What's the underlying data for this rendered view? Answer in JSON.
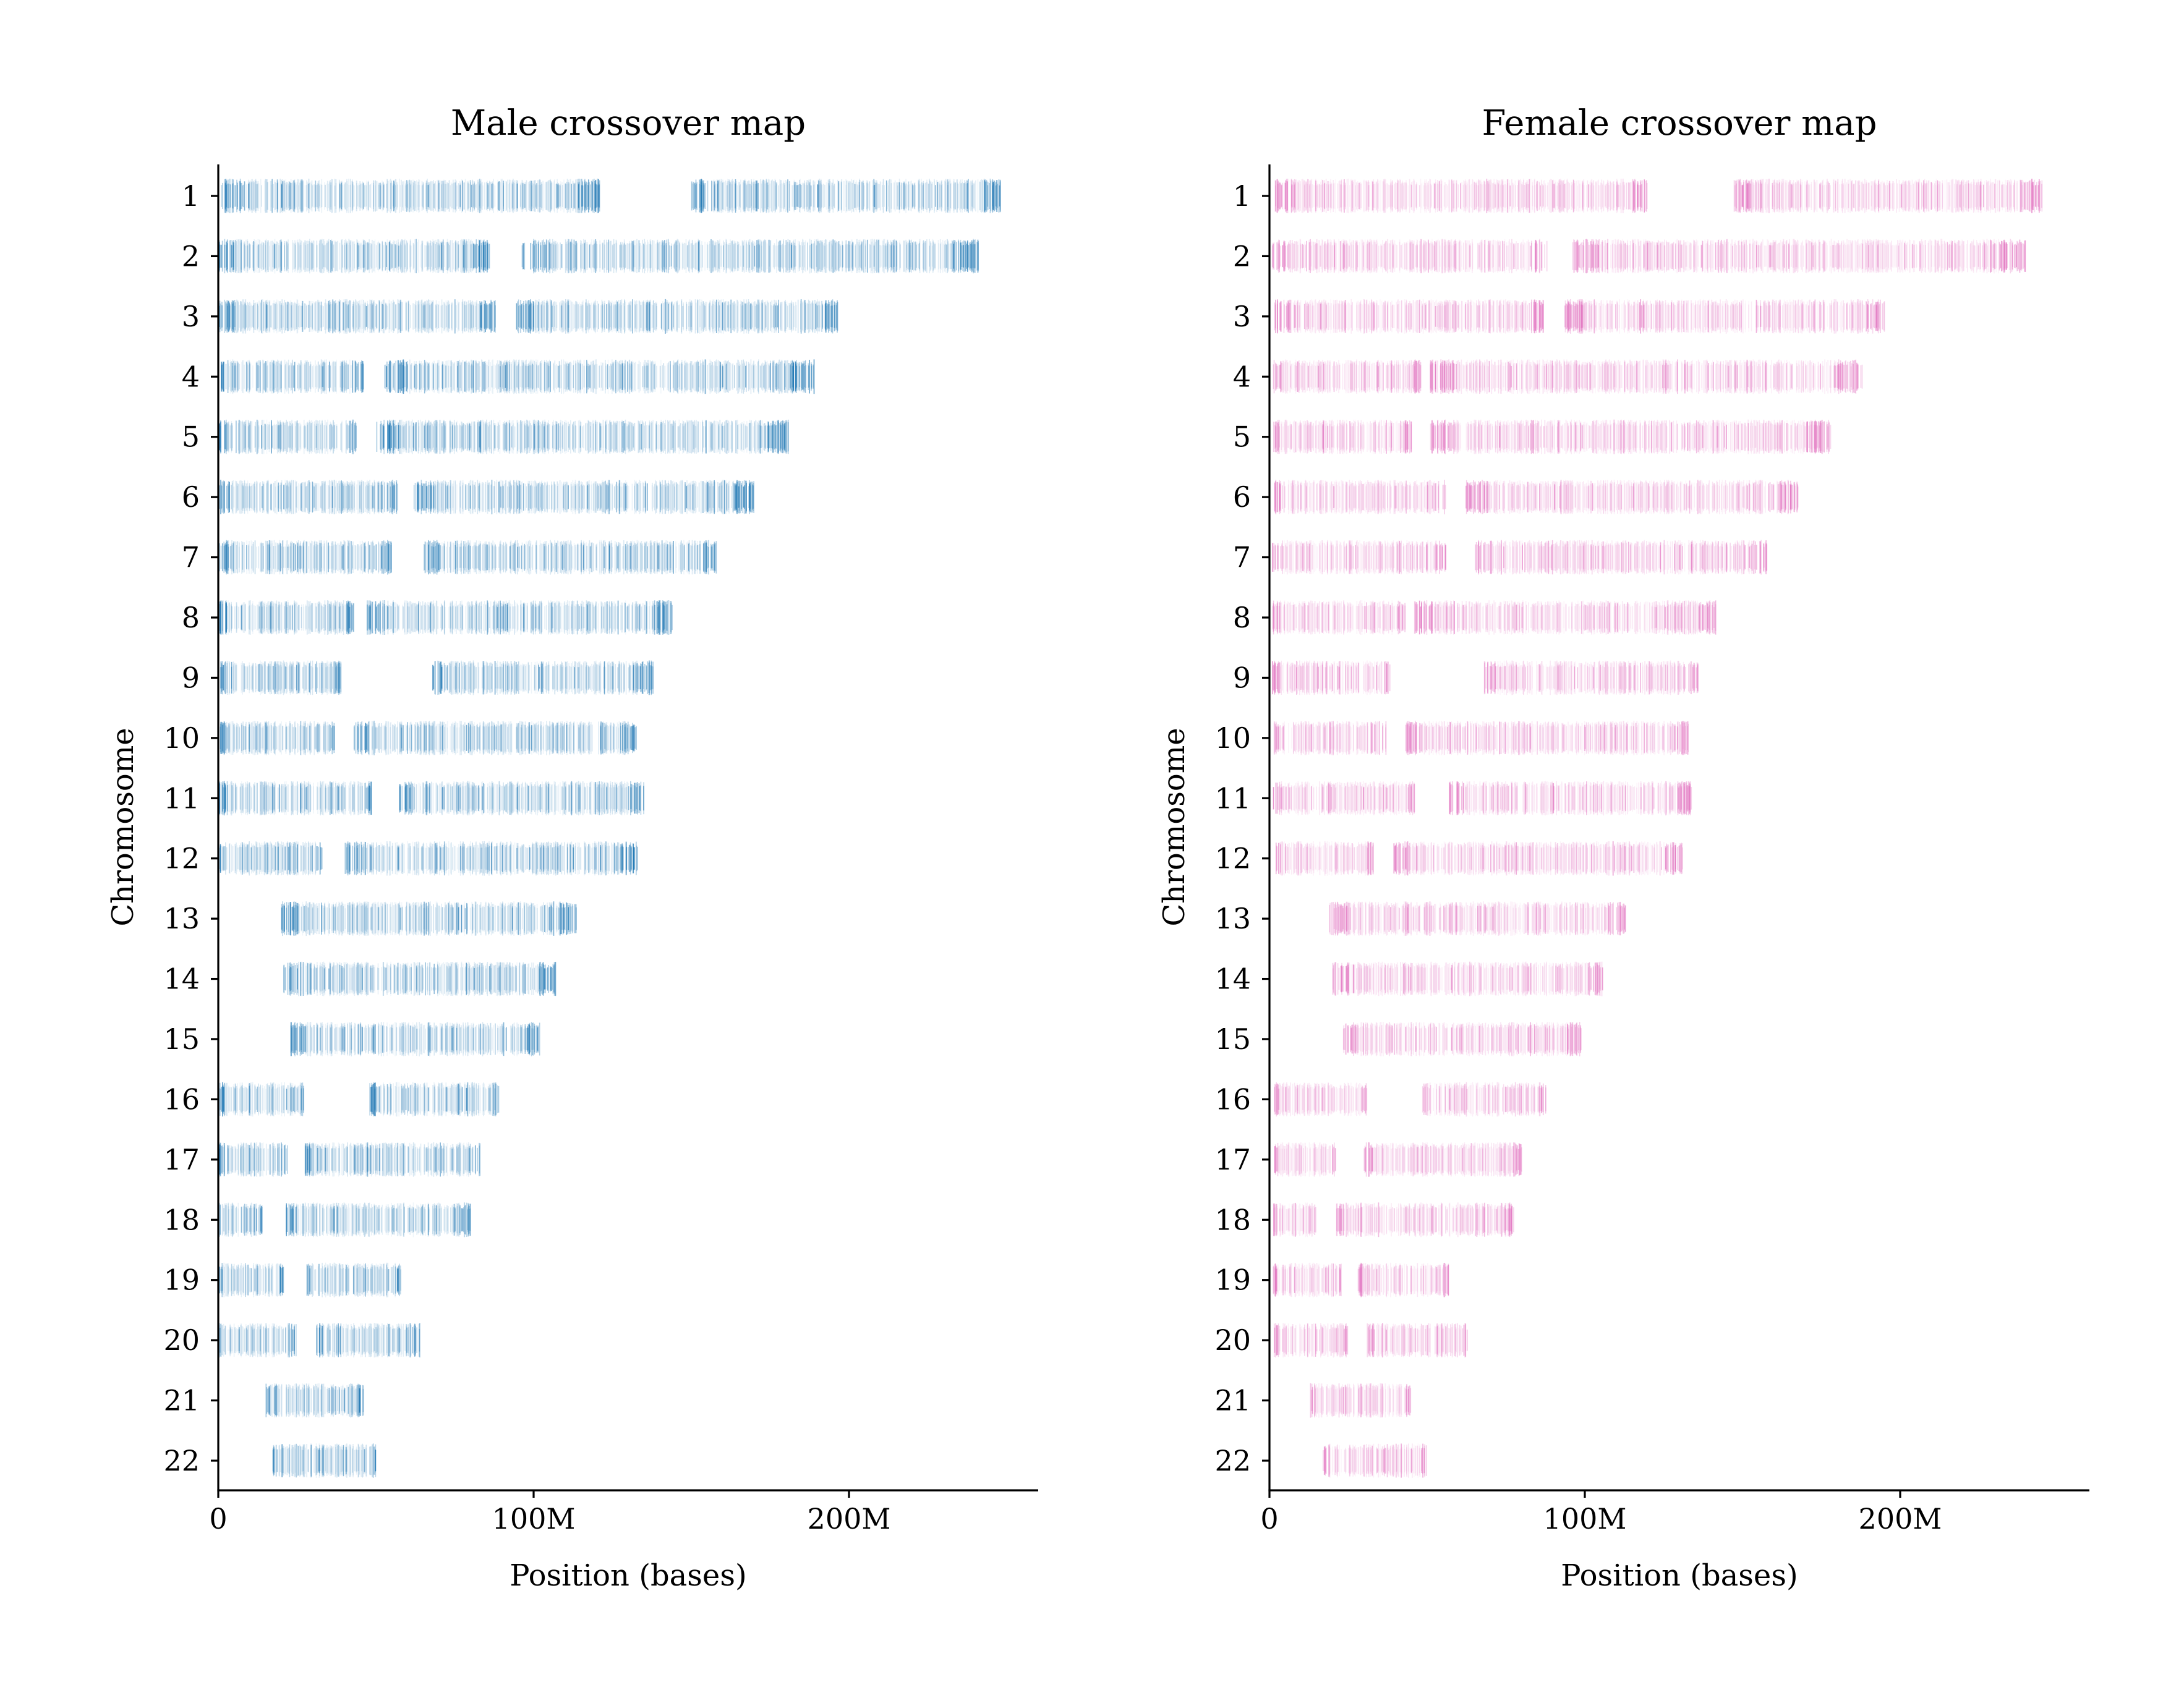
{
  "colors": {
    "male": "#1f77b4",
    "female": "#e377c2",
    "axis": "#000000",
    "background": "#ffffff"
  },
  "chart_data": [
    {
      "type": "scatter",
      "title": "Male crossover map",
      "xlabel": "Position (bases)",
      "ylabel": "Chromosome",
      "xlim": [
        0,
        260000000
      ],
      "xticks": [
        0,
        100000000,
        200000000
      ],
      "xtick_labels": [
        "0",
        "100M",
        "200M"
      ],
      "ytick_labels": [
        "1",
        "2",
        "3",
        "4",
        "5",
        "6",
        "7",
        "8",
        "9",
        "10",
        "11",
        "12",
        "13",
        "14",
        "15",
        "16",
        "17",
        "18",
        "19",
        "20",
        "21",
        "22"
      ],
      "grid": false,
      "color": "#1f77b4",
      "chromosomes": [
        {
          "chrom": "1",
          "ranges": [
            [
              800000,
              121000000
            ],
            [
              150000000,
              248000000
            ]
          ]
        },
        {
          "chrom": "2",
          "ranges": [
            [
              300000,
              86000000
            ],
            [
              96000000,
              241000000
            ]
          ]
        },
        {
          "chrom": "3",
          "ranges": [
            [
              200000,
              88000000
            ],
            [
              94000000,
              197000000
            ]
          ]
        },
        {
          "chrom": "4",
          "ranges": [
            [
              200000,
              46000000
            ],
            [
              52000000,
              189000000
            ]
          ]
        },
        {
          "chrom": "5",
          "ranges": [
            [
              100000,
              44000000
            ],
            [
              50000000,
              181000000
            ]
          ]
        },
        {
          "chrom": "6",
          "ranges": [
            [
              200000,
              57000000
            ],
            [
              62000000,
              170000000
            ]
          ]
        },
        {
          "chrom": "7",
          "ranges": [
            [
              100000,
              55000000
            ],
            [
              65000000,
              158000000
            ]
          ]
        },
        {
          "chrom": "8",
          "ranges": [
            [
              300000,
              43000000
            ],
            [
              47000000,
              144000000
            ]
          ]
        },
        {
          "chrom": "9",
          "ranges": [
            [
              200000,
              39000000
            ],
            [
              68000000,
              138000000
            ]
          ]
        },
        {
          "chrom": "10",
          "ranges": [
            [
              300000,
              37000000
            ],
            [
              43000000,
              133000000
            ]
          ]
        },
        {
          "chrom": "11",
          "ranges": [
            [
              200000,
              49000000
            ],
            [
              57000000,
              135000000
            ]
          ]
        },
        {
          "chrom": "12",
          "ranges": [
            [
              200000,
              33000000
            ],
            [
              40000000,
              133000000
            ]
          ]
        },
        {
          "chrom": "13",
          "ranges": [
            [
              20000000,
              114000000
            ]
          ]
        },
        {
          "chrom": "14",
          "ranges": [
            [
              20000000,
              107000000
            ]
          ]
        },
        {
          "chrom": "15",
          "ranges": [
            [
              23000000,
              102000000
            ]
          ]
        },
        {
          "chrom": "16",
          "ranges": [
            [
              100000,
              28000000
            ],
            [
              48000000,
              89000000
            ]
          ]
        },
        {
          "chrom": "17",
          "ranges": [
            [
              100000,
              22000000
            ],
            [
              27000000,
              83000000
            ]
          ]
        },
        {
          "chrom": "18",
          "ranges": [
            [
              100000,
              14000000
            ],
            [
              21000000,
              80000000
            ]
          ]
        },
        {
          "chrom": "19",
          "ranges": [
            [
              100000,
              21000000
            ],
            [
              28000000,
              58000000
            ]
          ]
        },
        {
          "chrom": "20",
          "ranges": [
            [
              100000,
              25000000
            ],
            [
              31000000,
              64000000
            ]
          ]
        },
        {
          "chrom": "21",
          "ranges": [
            [
              15000000,
              46000000
            ]
          ]
        },
        {
          "chrom": "22",
          "ranges": [
            [
              17000000,
              50000000
            ]
          ]
        }
      ]
    },
    {
      "type": "scatter",
      "title": "Female crossover map",
      "xlabel": "Position (bases)",
      "ylabel": "Chromosome",
      "xlim": [
        0,
        260000000
      ],
      "xticks": [
        0,
        100000000,
        200000000
      ],
      "xtick_labels": [
        "0",
        "100M",
        "200M"
      ],
      "ytick_labels": [
        "1",
        "2",
        "3",
        "4",
        "5",
        "6",
        "7",
        "8",
        "9",
        "10",
        "11",
        "12",
        "13",
        "14",
        "15",
        "16",
        "17",
        "18",
        "19",
        "20",
        "21",
        "22"
      ],
      "grid": false,
      "color": "#e377c2",
      "chromosomes": [
        {
          "chrom": "1",
          "ranges": [
            [
              1500000,
              120000000
            ],
            [
              147000000,
              245000000
            ]
          ]
        },
        {
          "chrom": "2",
          "ranges": [
            [
              900000,
              88000000
            ],
            [
              96000000,
              240000000
            ]
          ]
        },
        {
          "chrom": "3",
          "ranges": [
            [
              1500000,
              87000000
            ],
            [
              93000000,
              195000000
            ]
          ]
        },
        {
          "chrom": "4",
          "ranges": [
            [
              1200000,
              48000000
            ],
            [
              51000000,
              188000000
            ]
          ]
        },
        {
          "chrom": "5",
          "ranges": [
            [
              1000000,
              45000000
            ],
            [
              51000000,
              178000000
            ]
          ]
        },
        {
          "chrom": "6",
          "ranges": [
            [
              1500000,
              56000000
            ],
            [
              62000000,
              168000000
            ]
          ]
        },
        {
          "chrom": "7",
          "ranges": [
            [
              900000,
              56000000
            ],
            [
              65000000,
              158000000
            ]
          ]
        },
        {
          "chrom": "8",
          "ranges": [
            [
              800000,
              43000000
            ],
            [
              46000000,
              142000000
            ]
          ]
        },
        {
          "chrom": "9",
          "ranges": [
            [
              1000000,
              39000000
            ],
            [
              68000000,
              136000000
            ]
          ]
        },
        {
          "chrom": "10",
          "ranges": [
            [
              1500000,
              37000000
            ],
            [
              43000000,
              133000000
            ]
          ]
        },
        {
          "chrom": "11",
          "ranges": [
            [
              1000000,
              46000000
            ],
            [
              57000000,
              134000000
            ]
          ]
        },
        {
          "chrom": "12",
          "ranges": [
            [
              1500000,
              33000000
            ],
            [
              39000000,
              131000000
            ]
          ]
        },
        {
          "chrom": "13",
          "ranges": [
            [
              19000000,
              113000000
            ]
          ]
        },
        {
          "chrom": "14",
          "ranges": [
            [
              20000000,
              106000000
            ]
          ]
        },
        {
          "chrom": "15",
          "ranges": [
            [
              23000000,
              99000000
            ]
          ]
        },
        {
          "chrom": "16",
          "ranges": [
            [
              1500000,
              31000000
            ],
            [
              48000000,
              88000000
            ]
          ]
        },
        {
          "chrom": "17",
          "ranges": [
            [
              1500000,
              21000000
            ],
            [
              30000000,
              80000000
            ]
          ]
        },
        {
          "chrom": "18",
          "ranges": [
            [
              900000,
              15000000
            ],
            [
              21000000,
              78000000
            ]
          ]
        },
        {
          "chrom": "19",
          "ranges": [
            [
              1000000,
              23000000
            ],
            [
              28000000,
              57000000
            ]
          ]
        },
        {
          "chrom": "20",
          "ranges": [
            [
              1500000,
              25000000
            ],
            [
              31000000,
              63000000
            ]
          ]
        },
        {
          "chrom": "21",
          "ranges": [
            [
              13000000,
              45000000
            ]
          ]
        },
        {
          "chrom": "22",
          "ranges": [
            [
              17000000,
              50000000
            ]
          ]
        }
      ]
    }
  ]
}
